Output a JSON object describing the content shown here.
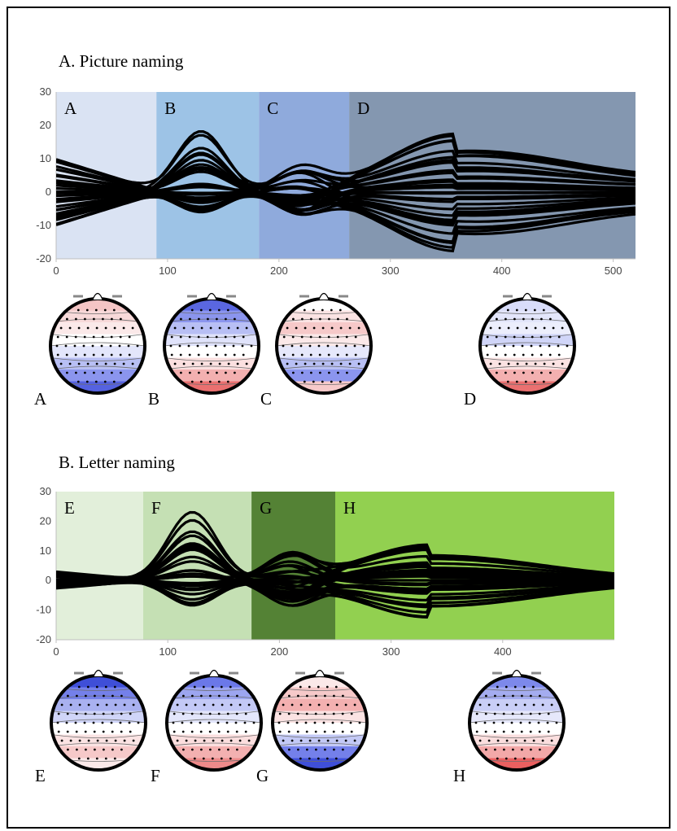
{
  "chart_data": [
    {
      "type": "line",
      "title": "A. Picture naming",
      "xlim": [
        0,
        520
      ],
      "ylim": [
        -20,
        30
      ],
      "xticks": [
        0,
        100,
        200,
        300,
        400,
        500
      ],
      "yticks": [
        30,
        20,
        10,
        0,
        -10,
        -20
      ],
      "segments": [
        {
          "label": "A",
          "start": 0,
          "end": 90,
          "color": "#dae3f3"
        },
        {
          "label": "B",
          "start": 90,
          "end": 182,
          "color": "#9dc3e6"
        },
        {
          "label": "C",
          "start": 182,
          "end": 263,
          "color": "#8faadc"
        },
        {
          "label": "D",
          "start": 263,
          "end": 520,
          "color": "#8497b0"
        }
      ],
      "topomaps": [
        "A",
        "B",
        "C",
        "D"
      ],
      "trace_count": 32
    },
    {
      "type": "line",
      "title": "B. Letter naming",
      "xlim": [
        0,
        500
      ],
      "ylim": [
        -20,
        30
      ],
      "xticks": [
        0,
        100,
        200,
        300,
        400
      ],
      "yticks": [
        30,
        20,
        10,
        0,
        -10,
        -20
      ],
      "segments": [
        {
          "label": "E",
          "start": 0,
          "end": 78,
          "color": "#e2efda"
        },
        {
          "label": "F",
          "start": 78,
          "end": 175,
          "color": "#c5e0b4"
        },
        {
          "label": "G",
          "start": 175,
          "end": 250,
          "color": "#548235"
        },
        {
          "label": "H",
          "start": 250,
          "end": 500,
          "color": "#92d050"
        }
      ],
      "topomaps": [
        "E",
        "F",
        "G",
        "H"
      ],
      "trace_count": 32
    }
  ]
}
